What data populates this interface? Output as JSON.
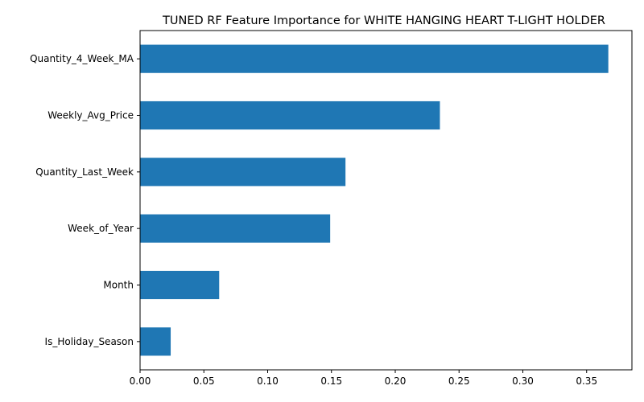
{
  "chart_data": {
    "type": "bar",
    "orientation": "horizontal",
    "title": "TUNED RF Feature Importance for WHITE HANGING HEART T-LIGHT HOLDER",
    "xlabel": "",
    "ylabel": "",
    "categories": [
      "Quantity_4_Week_MA",
      "Weekly_Avg_Price",
      "Quantity_Last_Week",
      "Week_of_Year",
      "Month",
      "Is_Holiday_Season"
    ],
    "values": [
      0.367,
      0.235,
      0.161,
      0.149,
      0.062,
      0.024
    ],
    "xlim": [
      0,
      0.3855
    ],
    "xticks": [
      "0.00",
      "0.05",
      "0.10",
      "0.15",
      "0.20",
      "0.25",
      "0.30",
      "0.35"
    ],
    "grid": false,
    "bar_color": "#1f77b4"
  }
}
